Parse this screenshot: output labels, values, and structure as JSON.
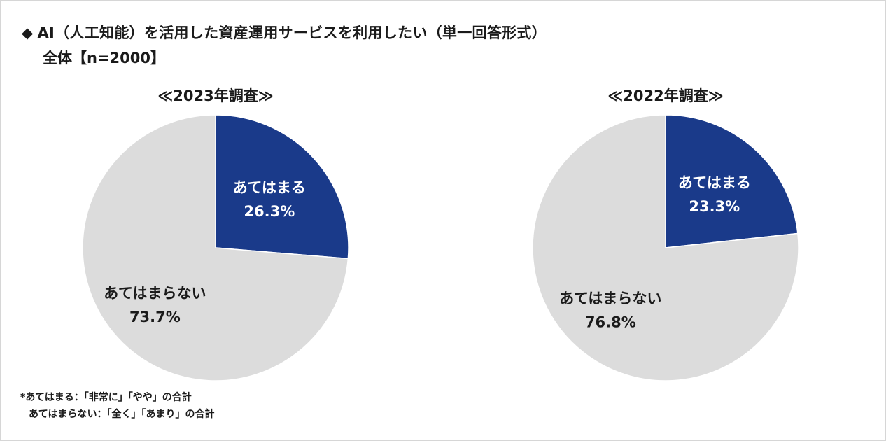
{
  "title": "AI（人工知能）を活用した資産運用サービスを利用したい（単一回答形式）",
  "title_marker": "◆",
  "subtitle": "全体【n=2000】",
  "footnotes": [
    "*あてはまる：「非常に」「やや」の合計",
    "あてはまらない：「全く」「あまり」の合計"
  ],
  "colors": {
    "applies": "#1a3a8a",
    "not_applies": "#dcdcdc",
    "label_on_dark": "#ffffff",
    "label_on_light": "#1a1a1a"
  },
  "chart_data": [
    {
      "type": "pie",
      "title": "≪2023年調査≫",
      "slices": [
        {
          "label": "あてはまる",
          "value": 26.3,
          "display": "26.3%"
        },
        {
          "label": "あてはまらない",
          "value": 73.7,
          "display": "73.7%"
        }
      ]
    },
    {
      "type": "pie",
      "title": "≪2022年調査≫",
      "slices": [
        {
          "label": "あてはまる",
          "value": 23.3,
          "display": "23.3%"
        },
        {
          "label": "あてはまらない",
          "value": 76.8,
          "display": "76.8%"
        }
      ]
    }
  ]
}
